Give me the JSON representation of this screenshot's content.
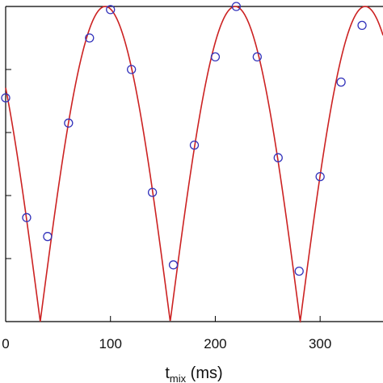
{
  "chart_data": {
    "type": "scatter",
    "title": "",
    "xlabel": "t",
    "xlabel_subscript": "mix",
    "xlabel_unit": " (ms)",
    "ylabel": "",
    "xlim": [
      0,
      360
    ],
    "ylim": [
      0,
      1
    ],
    "x_ticks": [
      0,
      100,
      200,
      300
    ],
    "x_tick_labels": [
      "0",
      "100",
      "200",
      "300"
    ],
    "y_tick_values": [
      0.2,
      0.4,
      0.6,
      0.8,
      1.0
    ],
    "grid": false,
    "legend": "none",
    "colors": {
      "points": "#3333bb",
      "fit": "#cc2222",
      "axis": "#000000"
    },
    "series": [
      {
        "kind": "points",
        "x": [
          0,
          20,
          40,
          60,
          80,
          100,
          120,
          140,
          160,
          180,
          200,
          220,
          240,
          260,
          280,
          300,
          320,
          340
        ],
        "y": [
          0.71,
          0.33,
          0.27,
          0.63,
          0.9,
          0.99,
          0.8,
          0.41,
          0.18,
          0.56,
          0.84,
          1.0,
          0.84,
          0.52,
          0.16,
          0.46,
          0.76,
          0.94
        ]
      },
      {
        "kind": "fit",
        "formula": "|cos(pi*(t - 95)/124)|",
        "period": 124,
        "phase": 95
      }
    ]
  }
}
